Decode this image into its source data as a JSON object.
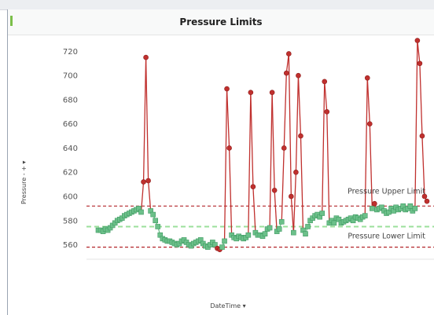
{
  "title": "Pressure Limits",
  "yaxis_control": {
    "label": "Pressure",
    "minus": "-",
    "plus": "+",
    "arrow": "▾"
  },
  "xaxis_control": {
    "label": "DateTime",
    "arrow": "▾"
  },
  "colors": {
    "in_limit": "#6cc08a",
    "out_of_limit": "#c0302e",
    "upper_limit_line": "#b3262a",
    "lower_limit_line": "#b3262a",
    "mean_line": "#9bdf9b"
  },
  "chart_data": {
    "type": "line",
    "title": "Pressure Limits",
    "xlabel": "DateTime",
    "ylabel": "Pressure",
    "ylim": [
      548,
      730
    ],
    "yticks": [
      560,
      580,
      600,
      620,
      640,
      660,
      680,
      700,
      720
    ],
    "grid": false,
    "upper_limit": {
      "value": 592,
      "label": "Pressure Upper Limit"
    },
    "lower_limit": {
      "value": 558,
      "label": "Pressure Lower Limit"
    },
    "center_line": 575,
    "series": [
      {
        "values": [
          572,
          572,
          571,
          573,
          572,
          574,
          576,
          578,
          580,
          581,
          582,
          584,
          585,
          586,
          587,
          588,
          589,
          590,
          587,
          612,
          715,
          613,
          588,
          585,
          580,
          575,
          568,
          565,
          564,
          563,
          563,
          562,
          561,
          560,
          561,
          563,
          564,
          562,
          560,
          559,
          561,
          562,
          563,
          564,
          561,
          559,
          558,
          560,
          562,
          560,
          557,
          556,
          558,
          563,
          689,
          640,
          568,
          566,
          565,
          567,
          566,
          565,
          566,
          568,
          686,
          608,
          570,
          568,
          568,
          567,
          569,
          573,
          574,
          686,
          605,
          571,
          573,
          579,
          640,
          702,
          718,
          600,
          570,
          620,
          700,
          650,
          572,
          569,
          575,
          580,
          582,
          584,
          585,
          583,
          586,
          695,
          670,
          578,
          580,
          578,
          582,
          581,
          578,
          579,
          580,
          581,
          582,
          580,
          583,
          582,
          581,
          583,
          584,
          698,
          660,
          590,
          594,
          589,
          590,
          591,
          588,
          586,
          587,
          590,
          588,
          591,
          589,
          590,
          592,
          589,
          590,
          592,
          588,
          590,
          729,
          710,
          650,
          600,
          596
        ]
      }
    ]
  }
}
